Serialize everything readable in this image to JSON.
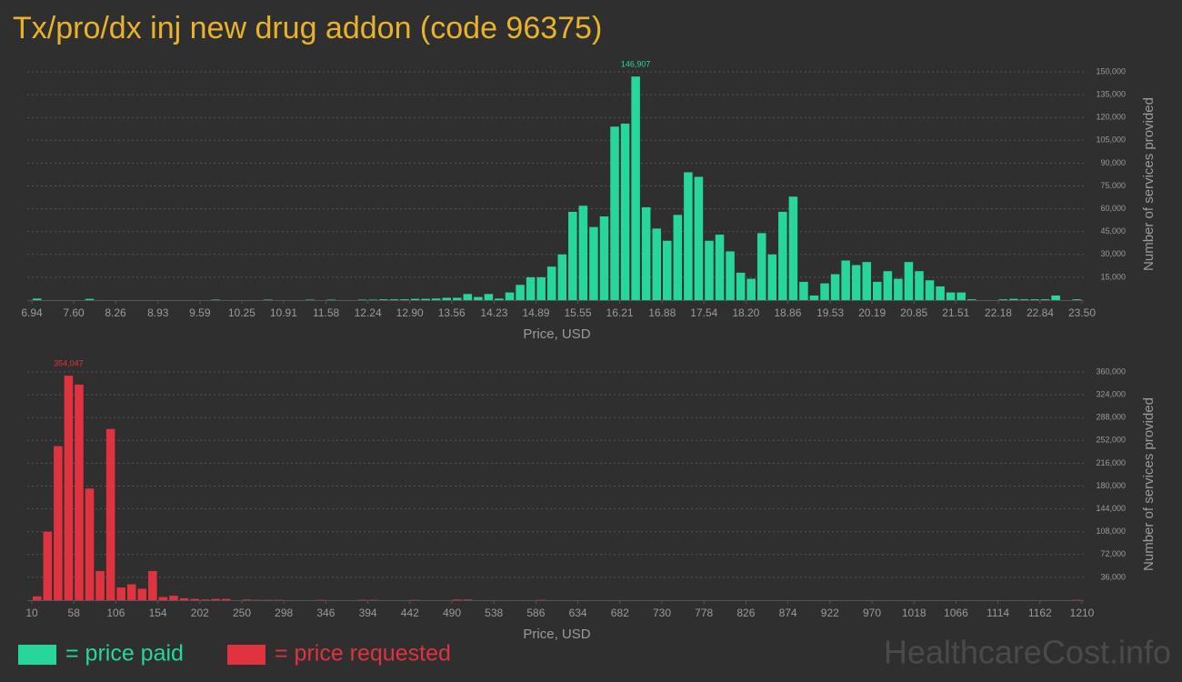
{
  "title": "Tx/pro/dx inj new drug addon (code 96375)",
  "watermark": "HealthcareCost.info",
  "chart_data": [
    {
      "type": "histogram",
      "name": "= price paid",
      "color": "#27d69a",
      "xlabel": "Price, USD",
      "ylabel": "Number of services provided",
      "grid": true,
      "xlim": [
        6.94,
        23.5
      ],
      "xticks": [
        6.94,
        {
          "value": 7.6,
          "label": "7.60"
        },
        8.26,
        8.93,
        9.59,
        10.25,
        10.91,
        11.58,
        12.24,
        {
          "value": 12.9,
          "label": "12.90"
        },
        13.56,
        14.23,
        14.89,
        15.55,
        16.21,
        16.88,
        17.54,
        {
          "value": 18.2,
          "label": "18.20"
        },
        18.86,
        19.53,
        20.19,
        20.85,
        21.51,
        22.18,
        22.84,
        {
          "value": 23.5,
          "label": "23.50"
        }
      ],
      "ylim": [
        0,
        150000
      ],
      "yticks": [
        {
          "value": 15000,
          "label": "15,000"
        },
        {
          "value": 30000,
          "label": "30,000"
        },
        {
          "value": 45000,
          "label": "45,000"
        },
        {
          "value": 60000,
          "label": "60,000"
        },
        {
          "value": 75000,
          "label": "75,000"
        },
        {
          "value": 90000,
          "label": "90,000"
        },
        {
          "value": 105000,
          "label": "105,000"
        },
        {
          "value": 120000,
          "label": "120,000"
        },
        {
          "value": 135000,
          "label": "135,000"
        },
        {
          "value": 150000,
          "label": "150,000"
        }
      ],
      "bins": [
        6.94,
        7.1056,
        7.2712,
        7.4368,
        7.6024,
        7.768,
        7.9336,
        8.0992,
        8.2648,
        8.4304,
        8.596,
        8.7616,
        8.9272,
        9.0928,
        9.2584,
        9.424,
        9.5896,
        9.7552,
        9.9208,
        10.0864,
        10.252,
        10.4176,
        10.5832,
        10.7488,
        10.9144,
        11.08,
        11.2456,
        11.4112,
        11.5768,
        11.7424,
        11.908,
        12.0736,
        12.2392,
        12.4048,
        12.5704,
        12.736,
        12.9016,
        13.0672,
        13.2328,
        13.3984,
        13.564,
        13.7296,
        13.8952,
        14.0608,
        14.2264,
        14.392,
        14.5576,
        14.7232,
        14.8888,
        15.0544,
        15.22,
        15.3856,
        15.5512,
        15.7168,
        15.8824,
        16.048,
        16.2136,
        16.3792,
        16.5448,
        16.7104,
        16.876,
        17.0416,
        17.2072,
        17.3728,
        17.5384,
        17.704,
        17.8696,
        18.0352,
        18.2008,
        18.3664,
        18.532,
        18.6976,
        18.8632,
        19.0288,
        19.1944,
        19.36,
        19.5256,
        19.6912,
        19.8568,
        20.0224,
        20.188,
        20.3536,
        20.5192,
        20.6848,
        20.8504,
        21.016,
        21.1816,
        21.3472,
        21.5128,
        21.6784,
        21.844,
        22.0096,
        22.1752,
        22.3408,
        22.5064,
        22.672,
        22.8376,
        23.0032,
        23.1688,
        23.3344,
        23.5
      ],
      "values": [
        1000,
        0,
        0,
        0,
        0,
        800,
        0,
        0,
        0,
        0,
        0,
        0,
        0,
        0,
        0,
        0,
        0,
        300,
        0,
        0,
        0,
        0,
        300,
        0,
        0,
        0,
        300,
        0,
        300,
        0,
        0,
        300,
        300,
        500,
        500,
        500,
        800,
        800,
        1000,
        1500,
        1500,
        4000,
        2000,
        4000,
        1000,
        5000,
        10000,
        15000,
        15000,
        22000,
        30000,
        58000,
        62000,
        48000,
        55000,
        114000,
        116000,
        146907,
        61000,
        47000,
        39000,
        56000,
        84000,
        81000,
        39000,
        43000,
        32000,
        18000,
        14000,
        44000,
        30000,
        58000,
        68000,
        12000,
        3000,
        11000,
        17000,
        26000,
        23000,
        25000,
        12000,
        19000,
        14000,
        25000,
        19000,
        13000,
        9000,
        5000,
        5000,
        500,
        0,
        0,
        500,
        800,
        500,
        500,
        500,
        3000,
        0,
        500
      ],
      "value_labels": [
        null,
        null,
        null,
        null,
        null,
        null,
        null,
        null,
        null,
        null,
        null,
        null,
        null,
        null,
        null,
        null,
        null,
        null,
        null,
        null,
        null,
        null,
        null,
        null,
        null,
        null,
        null,
        null,
        null,
        null,
        null,
        null,
        null,
        null,
        null,
        null,
        null,
        null,
        null,
        null,
        null,
        null,
        null,
        null,
        null,
        null,
        null,
        null,
        null,
        null,
        null,
        null,
        null,
        null,
        null,
        null,
        null,
        "146,907",
        null,
        null,
        null,
        null,
        null,
        null,
        null,
        null,
        null,
        null,
        null,
        null,
        null,
        null,
        null,
        null,
        null,
        null,
        null,
        null,
        null,
        null,
        null,
        null,
        null,
        null,
        null,
        null,
        null,
        null,
        null,
        null,
        null,
        null,
        null,
        null,
        null,
        null,
        null,
        null,
        null,
        null
      ]
    },
    {
      "type": "histogram",
      "name": "= price requested",
      "color": "#e0323f",
      "xlabel": "Price, USD",
      "ylabel": "Number of services provided",
      "grid": true,
      "xlim": [
        10,
        1210
      ],
      "xticks": [
        10,
        58,
        106,
        154,
        202,
        250,
        298,
        346,
        394,
        442,
        490,
        538,
        586,
        634,
        682,
        730,
        778,
        826,
        874,
        922,
        970,
        1018,
        1066,
        1114,
        1162,
        1210
      ],
      "ylim": [
        0,
        360000
      ],
      "yticks": [
        {
          "value": 36000,
          "label": "36,000"
        },
        {
          "value": 72000,
          "label": "72,000"
        },
        {
          "value": 108000,
          "label": "108,000"
        },
        {
          "value": 144000,
          "label": "144,000"
        },
        {
          "value": 180000,
          "label": "180,000"
        },
        {
          "value": 216000,
          "label": "216,000"
        },
        {
          "value": 252000,
          "label": "252,000"
        },
        {
          "value": 288000,
          "label": "288,000"
        },
        {
          "value": 324000,
          "label": "324,000"
        },
        {
          "value": 360000,
          "label": "360,000"
        }
      ],
      "bins": [
        10,
        22,
        34,
        46,
        58,
        70,
        82,
        94,
        106,
        118,
        130,
        142,
        154,
        166,
        178,
        190,
        202,
        214,
        226,
        238,
        250,
        262,
        274,
        286,
        298,
        310,
        322,
        334,
        346,
        358,
        370,
        382,
        394,
        406,
        418,
        430,
        442,
        454,
        466,
        478,
        490,
        502,
        514,
        526,
        538,
        550,
        562,
        574,
        586,
        598,
        610,
        622,
        634,
        646,
        658,
        670,
        682,
        694,
        706,
        718,
        730,
        742,
        754,
        766,
        778,
        790,
        802,
        814,
        826,
        838,
        850,
        862,
        874,
        886,
        898,
        910,
        922,
        934,
        946,
        958,
        970,
        982,
        994,
        1006,
        1018,
        1030,
        1042,
        1054,
        1066,
        1078,
        1090,
        1102,
        1114,
        1126,
        1138,
        1150,
        1162,
        1174,
        1186,
        1198,
        1210
      ],
      "values": [
        6000,
        108000,
        243000,
        354047,
        340000,
        176000,
        46000,
        270000,
        20000,
        25000,
        18000,
        46000,
        5000,
        7000,
        3000,
        2000,
        1000,
        2000,
        2000,
        0,
        1000,
        500,
        500,
        500,
        0,
        0,
        0,
        500,
        0,
        0,
        0,
        500,
        500,
        0,
        0,
        0,
        500,
        0,
        0,
        0,
        1000,
        1000,
        0,
        0,
        0,
        0,
        0,
        0,
        500,
        0,
        0,
        0,
        0,
        0,
        0,
        0,
        0,
        0,
        0,
        0,
        0,
        0,
        0,
        0,
        0,
        0,
        0,
        0,
        0,
        0,
        0,
        0,
        0,
        0,
        0,
        0,
        0,
        0,
        0,
        0,
        0,
        0,
        0,
        0,
        0,
        0,
        0,
        0,
        0,
        0,
        0,
        0,
        0,
        0,
        0,
        0,
        0,
        0,
        0,
        500
      ],
      "value_labels": [
        null,
        null,
        null,
        "354,047",
        null,
        null,
        null,
        null,
        null,
        null,
        null,
        null,
        null,
        null,
        null,
        null,
        null,
        null,
        null,
        null,
        null,
        null,
        null,
        null,
        null,
        null,
        null,
        null,
        null,
        null,
        null,
        null,
        null,
        null,
        null,
        null,
        null,
        null,
        null,
        null,
        null,
        null,
        null,
        null,
        null,
        null,
        null,
        null,
        null,
        null,
        null,
        null,
        null,
        null,
        null,
        null,
        null,
        null,
        null,
        null,
        null,
        null,
        null,
        null,
        null,
        null,
        null,
        null,
        null,
        null,
        null,
        null,
        null,
        null,
        null,
        null,
        null,
        null,
        null,
        null,
        null,
        null,
        null,
        null,
        null,
        null,
        null,
        null,
        null,
        null,
        null,
        null,
        null,
        null,
        null,
        null,
        null,
        null,
        null,
        null
      ]
    }
  ]
}
